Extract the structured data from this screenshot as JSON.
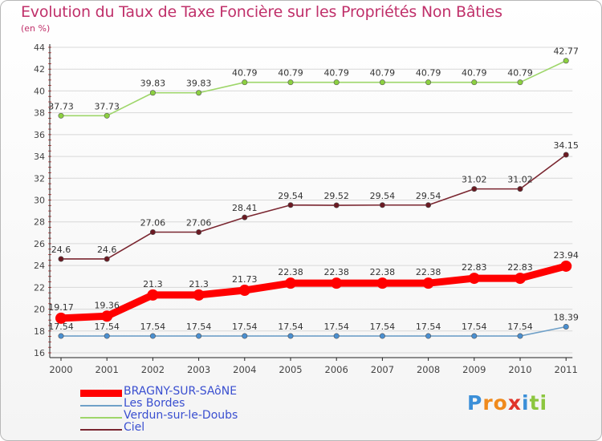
{
  "header": {
    "title": "Evolution du Taux de Taxe Foncière sur les Propriétés Non Bâties",
    "subtitle": "(en %)"
  },
  "logo": {
    "letters": [
      "P",
      "r",
      "o",
      "x",
      "i",
      "t",
      "i"
    ],
    "colors": [
      "#3b8fd8",
      "#f08a1c",
      "#f08a1c",
      "#e0342a",
      "#3b8fd8",
      "#8cc63f",
      "#8cc63f"
    ]
  },
  "chart_data": {
    "type": "line",
    "x": [
      "2000",
      "2001",
      "2002",
      "2003",
      "2004",
      "2005",
      "2006",
      "2007",
      "2008",
      "2009",
      "2010",
      "2011"
    ],
    "ylim": [
      16,
      44
    ],
    "yticks": [
      16,
      18,
      20,
      22,
      24,
      26,
      28,
      30,
      32,
      34,
      36,
      38,
      40,
      42,
      44
    ],
    "grid": "horizontal",
    "legend_position": "bottom-left",
    "series": [
      {
        "name": "BRAGNY-SUR-SAôNE",
        "color": "#ff0000",
        "marker_color": "#ff0000",
        "highlight": true,
        "values": [
          19.17,
          19.36,
          21.3,
          21.3,
          21.73,
          22.38,
          22.38,
          22.38,
          22.38,
          22.83,
          22.83,
          23.94
        ],
        "labels": [
          "19.17",
          "19.36",
          "21.3",
          "21.3",
          "21.73",
          "22.38",
          "22.38",
          "22.38",
          "22.38",
          "22.83",
          "22.83",
          "23.94"
        ]
      },
      {
        "name": "Les Bordes",
        "color": "#6fa0c8",
        "marker_color": "#4a8fd0",
        "highlight": false,
        "values": [
          17.54,
          17.54,
          17.54,
          17.54,
          17.54,
          17.54,
          17.54,
          17.54,
          17.54,
          17.54,
          17.54,
          18.39
        ],
        "labels": [
          "17.54",
          "17.54",
          "17.54",
          "17.54",
          "17.54",
          "17.54",
          "17.54",
          "17.54",
          "17.54",
          "17.54",
          "17.54",
          "18.39"
        ]
      },
      {
        "name": "Verdun-sur-le-Doubs",
        "color": "#9ed66a",
        "marker_color": "#8cd040",
        "highlight": false,
        "values": [
          37.73,
          37.73,
          39.83,
          39.83,
          40.79,
          40.79,
          40.79,
          40.79,
          40.79,
          40.79,
          40.79,
          42.77
        ],
        "labels": [
          "37.73",
          "37.73",
          "39.83",
          "39.83",
          "40.79",
          "40.79",
          "40.79",
          "40.79",
          "40.79",
          "40.79",
          "40.79",
          "42.77"
        ]
      },
      {
        "name": "Ciel",
        "color": "#7a2630",
        "marker_color": "#6b1a22",
        "highlight": false,
        "values": [
          24.6,
          24.6,
          27.06,
          27.06,
          28.41,
          29.54,
          29.52,
          29.54,
          29.54,
          31.02,
          31.02,
          34.15
        ],
        "labels": [
          "24.6",
          "24.6",
          "27.06",
          "27.06",
          "28.41",
          "29.54",
          "29.52",
          "29.54",
          "29.54",
          "31.02",
          "31.02",
          "34.15"
        ]
      }
    ]
  }
}
